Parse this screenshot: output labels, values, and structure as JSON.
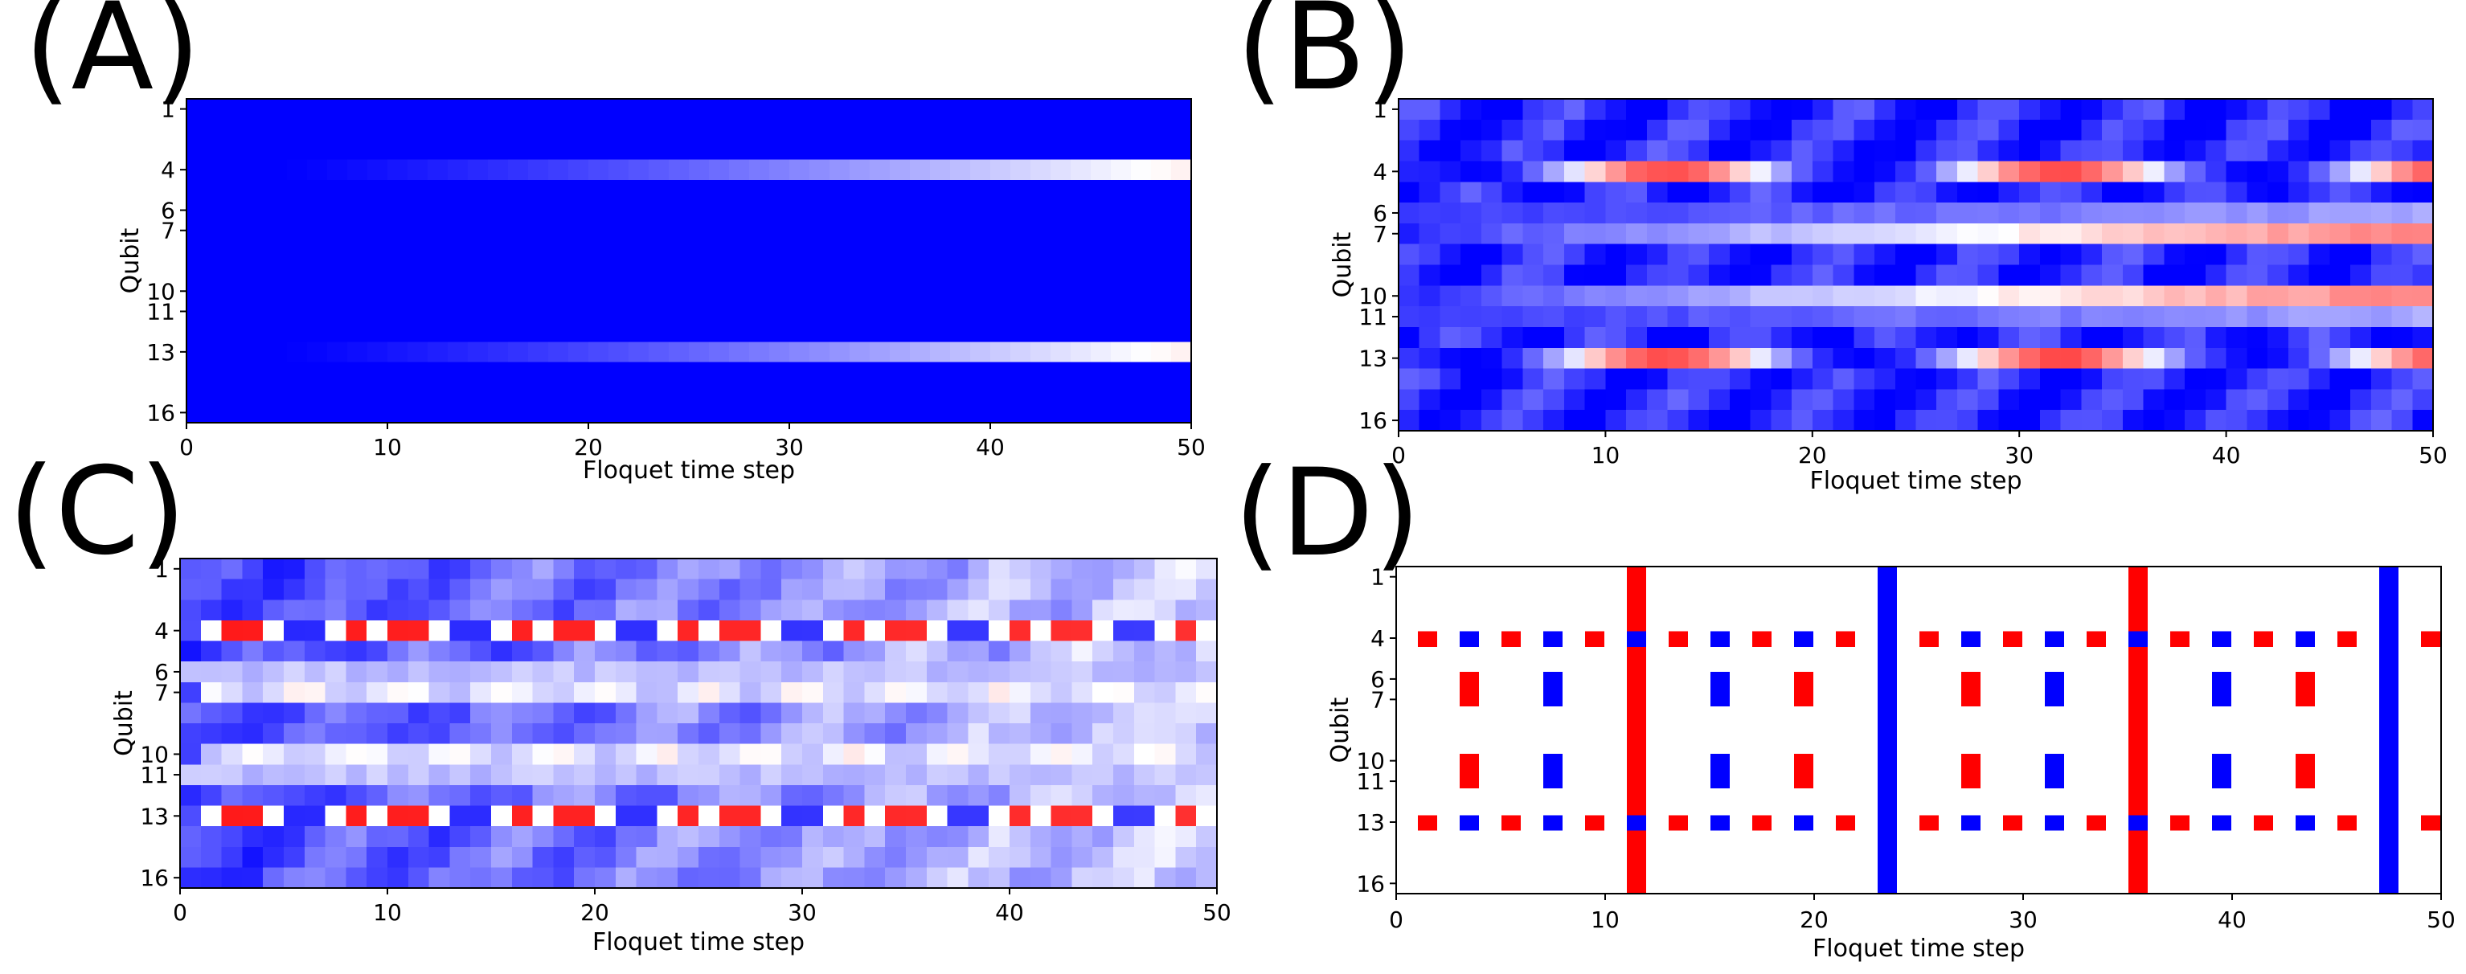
{
  "figure": {
    "panel_labels": [
      "(A)",
      "(B)",
      "(C)",
      "(D)"
    ]
  },
  "colors": {
    "blue": "#0000ff",
    "white": "#ffffff",
    "red": "#ff0000"
  },
  "chart_data": [
    {
      "id": "A",
      "type": "heatmap",
      "panel_label": "(A)",
      "xlabel": "Floquet time step",
      "ylabel": "Qubit",
      "xlim": [
        0,
        50
      ],
      "steps": 50,
      "rows": 16,
      "xticks": [
        0,
        10,
        20,
        30,
        40,
        50
      ],
      "yticks": [
        1,
        4,
        6,
        7,
        10,
        11,
        13,
        16
      ],
      "value_range": [
        -1,
        1
      ],
      "colormap": "bwr",
      "description_rows": {
        "4": "ramps from -1 at t<=4 to about +0.05 at t=49",
        "13": "ramps from -1 at t<=4 to about +0.05 at t=49",
        "others": -1
      }
    },
    {
      "id": "B",
      "type": "heatmap",
      "panel_label": "(B)",
      "xlabel": "Floquet time step",
      "ylabel": "Qubit",
      "xlim": [
        0,
        50
      ],
      "steps": 50,
      "rows": 16,
      "xticks": [
        0,
        10,
        20,
        30,
        40,
        50
      ],
      "yticks": [
        1,
        4,
        6,
        7,
        10,
        11,
        13,
        16
      ],
      "value_range": [
        -1,
        1
      ],
      "colormap": "bwr",
      "description_rows": {
        "4": "oscillates blue-white-red with period ~19 steps",
        "13": "same as qubit 4",
        "7": "slowly rises from -0.8 to +0.5",
        "10": "slowly rises from -0.8 to +0.5",
        "others": "about -0.85 to -0.6"
      }
    },
    {
      "id": "C",
      "type": "heatmap",
      "panel_label": "(C)",
      "xlabel": "Floquet time step",
      "ylabel": "Qubit",
      "xlim": [
        0,
        50
      ],
      "steps": 50,
      "rows": 16,
      "xticks": [
        0,
        10,
        20,
        30,
        40,
        50
      ],
      "yticks": [
        1,
        4,
        6,
        7,
        10,
        11,
        13,
        16
      ],
      "value_range": [
        -1,
        1
      ],
      "colormap": "bwr",
      "description_rows": {
        "4": "period-8 pattern: white, red, red, white, blue, blue, white ...",
        "13": "same as qubit 4",
        "others": "light blue, decaying from -0.7 to -0.2"
      }
    },
    {
      "id": "D",
      "type": "heatmap",
      "panel_label": "(D)",
      "xlabel": "Floquet time step",
      "ylabel": "Qubit",
      "xlim": [
        0,
        50
      ],
      "steps": 50,
      "rows": 16,
      "xticks": [
        0,
        10,
        20,
        30,
        40,
        50
      ],
      "yticks": [
        1,
        4,
        6,
        7,
        10,
        11,
        13,
        16
      ],
      "value_range": [
        -1,
        1
      ],
      "colormap": "bwr",
      "full_columns": [
        {
          "t": 11,
          "value": 1
        },
        {
          "t": 23,
          "value": -1
        },
        {
          "t": 35,
          "value": 1
        },
        {
          "t": 47,
          "value": -1
        }
      ],
      "rows_4_13_dots": [
        {
          "t": 1,
          "value": 1
        },
        {
          "t": 3,
          "value": -1
        },
        {
          "t": 5,
          "value": 1
        },
        {
          "t": 7,
          "value": -1
        },
        {
          "t": 9,
          "value": 1
        },
        {
          "t": 11,
          "value": -1
        },
        {
          "t": 13,
          "value": 1
        },
        {
          "t": 15,
          "value": -1
        },
        {
          "t": 17,
          "value": 1
        },
        {
          "t": 19,
          "value": -1
        },
        {
          "t": 21,
          "value": 1
        },
        {
          "t": 25,
          "value": 1
        },
        {
          "t": 27,
          "value": -1
        },
        {
          "t": 29,
          "value": 1
        },
        {
          "t": 31,
          "value": -1
        },
        {
          "t": 33,
          "value": 1
        },
        {
          "t": 35,
          "value": -1
        },
        {
          "t": 37,
          "value": 1
        },
        {
          "t": 39,
          "value": -1
        },
        {
          "t": 41,
          "value": 1
        },
        {
          "t": 43,
          "value": -1
        },
        {
          "t": 45,
          "value": 1
        },
        {
          "t": 49,
          "value": 1
        }
      ],
      "rows_6_7_10_11_dots": [
        {
          "t": 3,
          "value": 1
        },
        {
          "t": 7,
          "value": -1
        },
        {
          "t": 15,
          "value": -1
        },
        {
          "t": 19,
          "value": 1
        },
        {
          "t": 27,
          "value": 1
        },
        {
          "t": 31,
          "value": -1
        },
        {
          "t": 39,
          "value": -1
        },
        {
          "t": 43,
          "value": 1
        }
      ]
    }
  ]
}
